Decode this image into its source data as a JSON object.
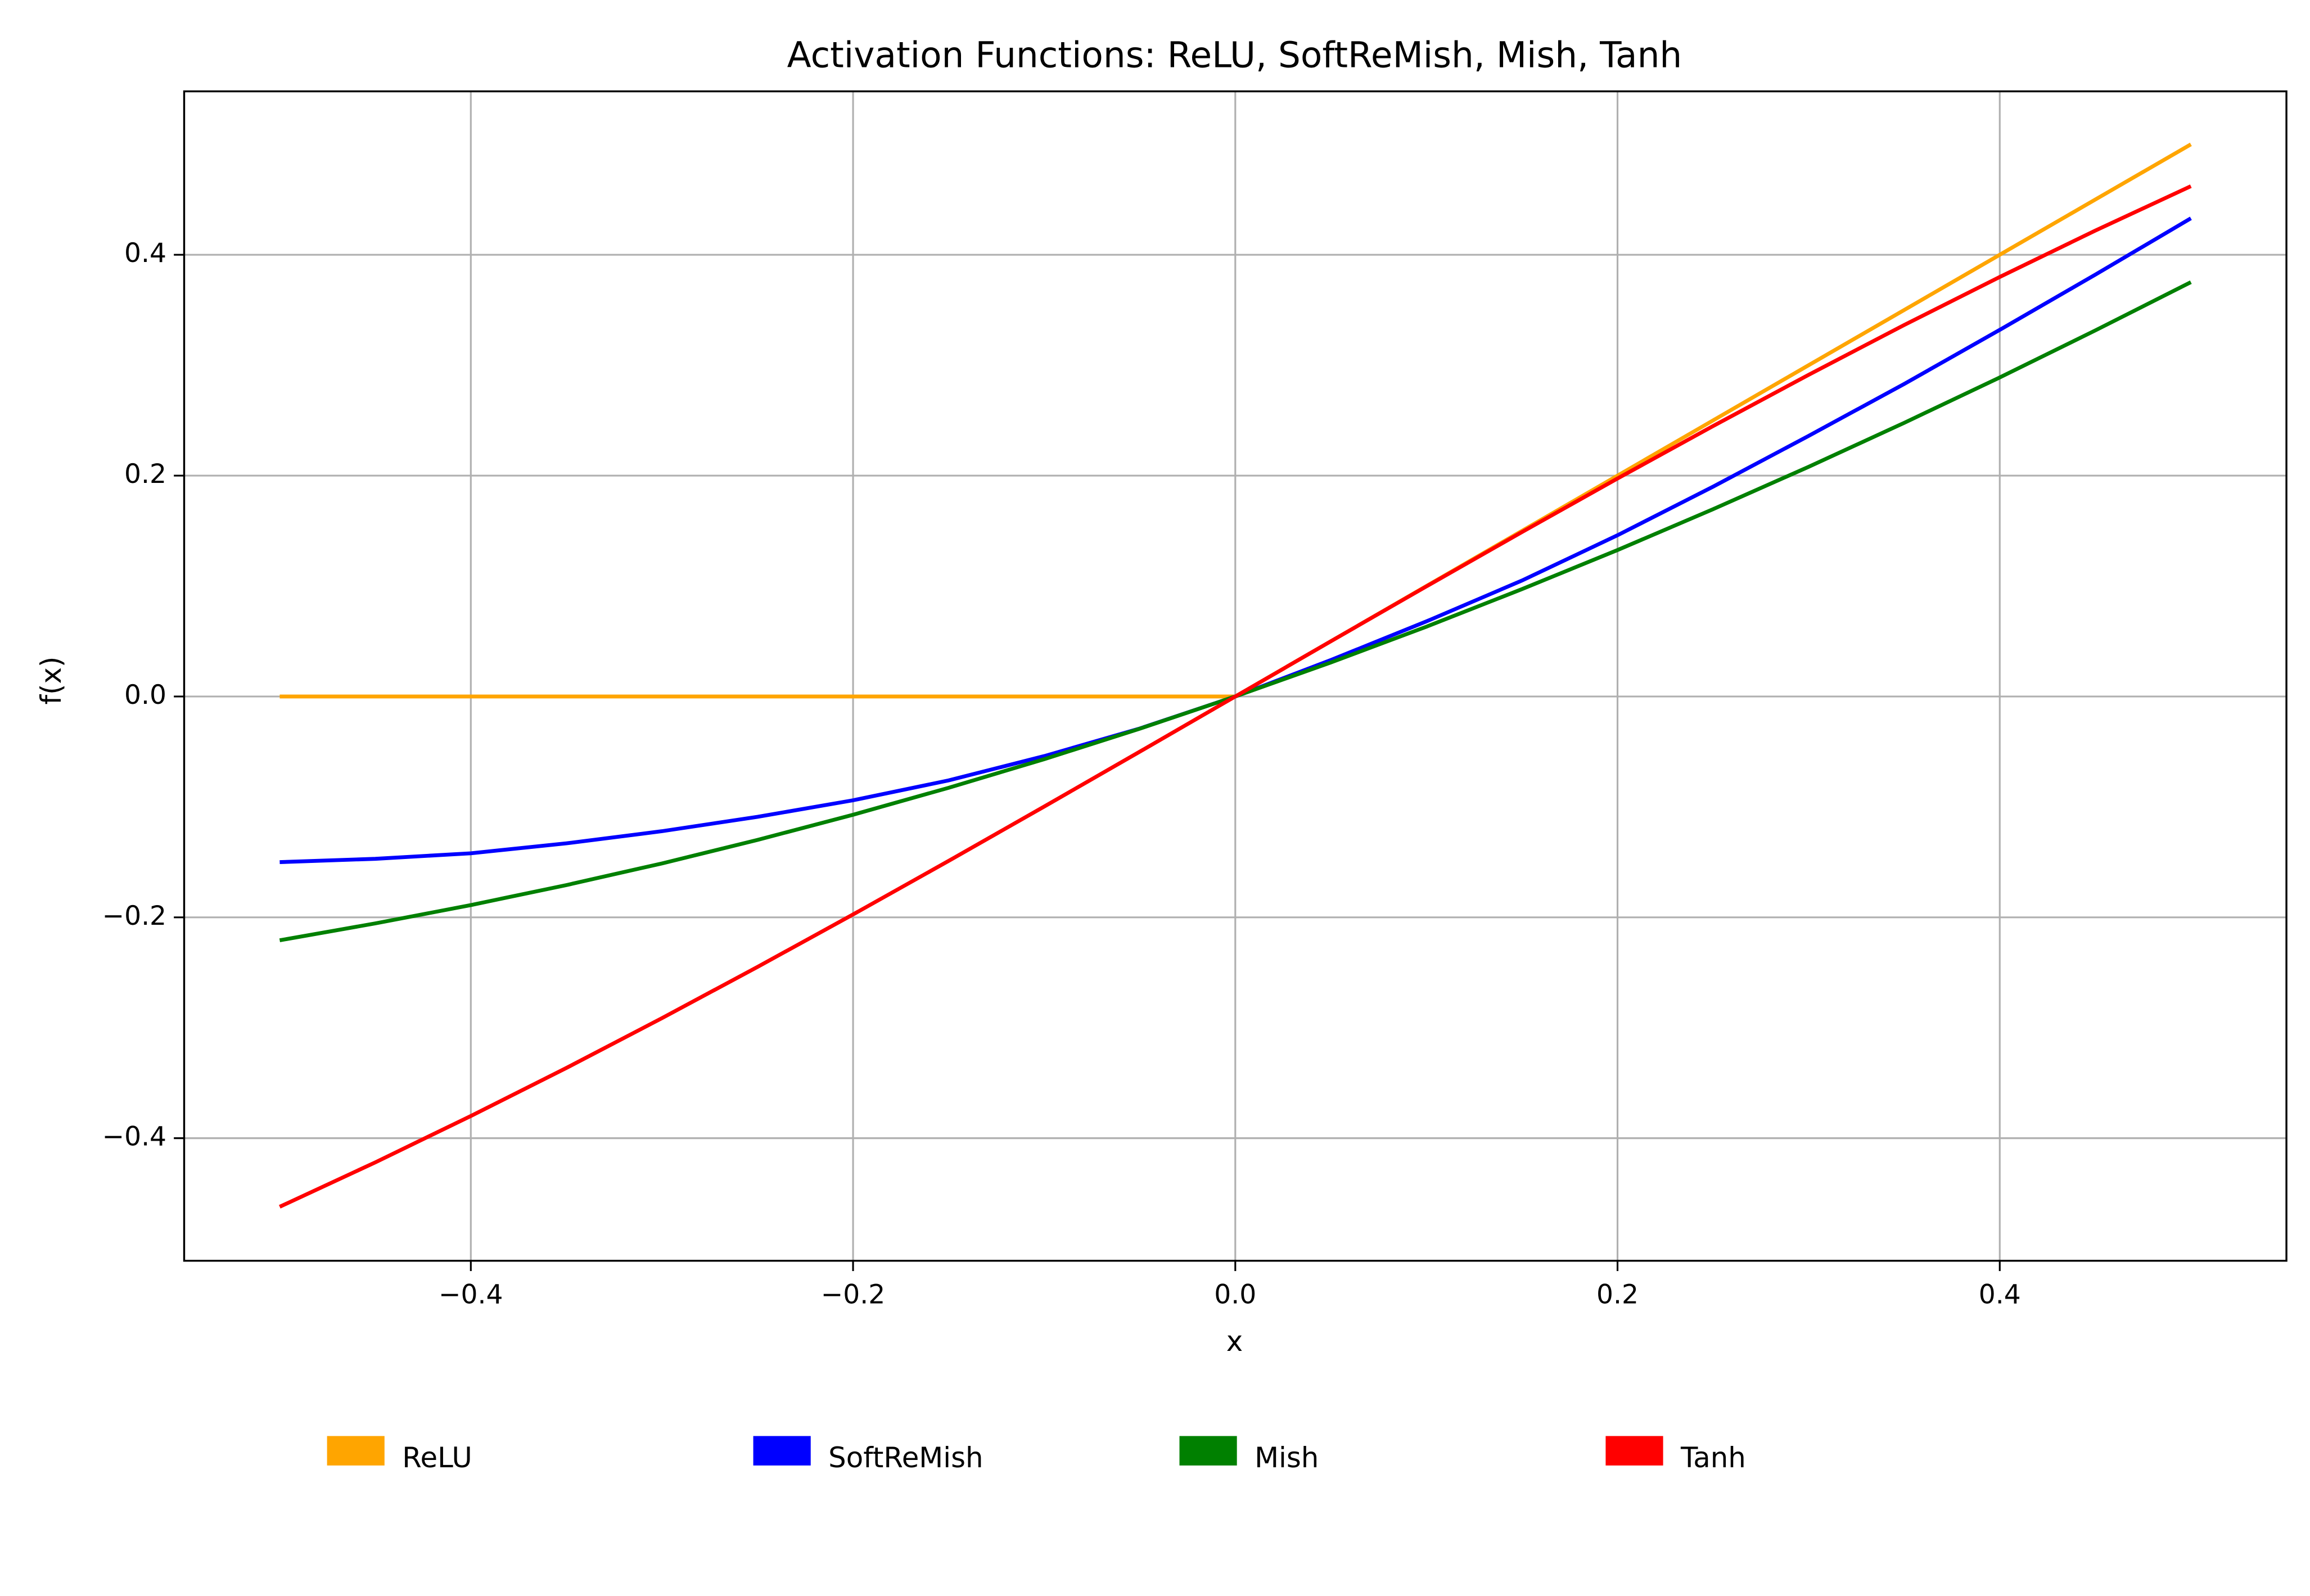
{
  "chart_data": {
    "type": "line",
    "title": "Activation Functions: ReLU, SoftReMish, Mish, Tanh",
    "x_label": "x",
    "y_label": "f(x)",
    "x": [
      -0.5,
      -0.45,
      -0.4,
      -0.35,
      -0.3,
      -0.25,
      -0.2,
      -0.15,
      -0.1,
      -0.05,
      0,
      0.05,
      0.1,
      0.15,
      0.2,
      0.25,
      0.3,
      0.35,
      0.4,
      0.45,
      0.5
    ],
    "series": [
      {
        "name": "ReLU",
        "color": "#ffa500",
        "values": [
          0,
          0,
          0,
          0,
          0,
          0,
          0,
          0,
          0,
          0,
          0,
          0.05,
          0.1,
          0.15,
          0.2,
          0.25,
          0.3,
          0.35,
          0.4,
          0.45,
          0.5
        ]
      },
      {
        "name": "SoftReMish",
        "color": "#0000ff",
        "values": [
          -0.15,
          -0.147,
          -0.142,
          -0.133,
          -0.122,
          -0.109,
          -0.094,
          -0.076,
          -0.054,
          -0.029,
          0,
          0.033,
          0.068,
          0.105,
          0.146,
          0.19,
          0.236,
          0.283,
          0.332,
          0.382,
          0.433
        ]
      },
      {
        "name": "Mish",
        "color": "#008000",
        "values": [
          -0.2208,
          -0.2055,
          -0.1889,
          -0.1708,
          -0.1512,
          -0.1299,
          -0.1071,
          -0.0827,
          -0.0568,
          -0.0292,
          0,
          0.0308,
          0.0632,
          0.0972,
          0.1326,
          0.1696,
          0.208,
          0.2478,
          0.2889,
          0.3315,
          0.3752
        ]
      },
      {
        "name": "Tanh",
        "color": "#ff0000",
        "values": [
          -0.4621,
          -0.4219,
          -0.3799,
          -0.3364,
          -0.2913,
          -0.2449,
          -0.1974,
          -0.1489,
          -0.0997,
          -0.05,
          0,
          0.05,
          0.0997,
          0.1489,
          0.1974,
          0.2449,
          0.2913,
          0.3364,
          0.3799,
          0.4219,
          0.4621
        ]
      }
    ],
    "xlim": [
      -0.55,
      0.55
    ],
    "ylim": [
      -0.511,
      0.548
    ],
    "xticks": [
      {
        "value": -0.4,
        "label": "−0.4"
      },
      {
        "value": -0.2,
        "label": "−0.2"
      },
      {
        "value": 0,
        "label": "0.0"
      },
      0.2,
      0.4
    ],
    "yticks": [
      {
        "value": -0.4,
        "label": "−0.4"
      },
      {
        "value": -0.2,
        "label": "−0.2"
      },
      {
        "value": 0,
        "label": "0.0"
      },
      0.2,
      0.4
    ],
    "grid": true,
    "legend": "below"
  }
}
